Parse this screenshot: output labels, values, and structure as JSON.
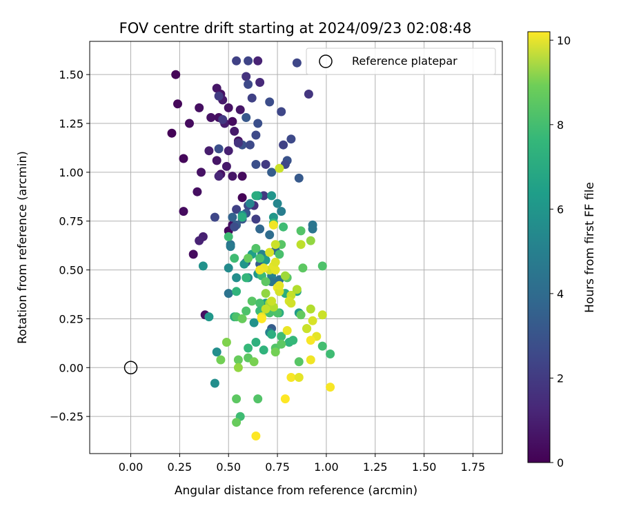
{
  "chart_data": {
    "type": "scatter",
    "title": "FOV centre drift starting at 2024/09/23 02:08:48",
    "xlabel": "Angular distance from reference (arcmin)",
    "ylabel": "Rotation from reference (arcmin)",
    "xlim": [
      -0.21,
      1.9
    ],
    "ylim": [
      -0.44,
      1.67
    ],
    "xticks": [
      0.0,
      0.25,
      0.5,
      0.75,
      1.0,
      1.25,
      1.5,
      1.75
    ],
    "xtick_labels": [
      "0.00",
      "0.25",
      "0.50",
      "0.75",
      "1.00",
      "1.25",
      "1.50",
      "1.75"
    ],
    "yticks": [
      -0.25,
      0.0,
      0.25,
      0.5,
      0.75,
      1.0,
      1.25,
      1.5
    ],
    "ytick_labels": [
      "−0.25",
      "0.00",
      "0.25",
      "0.50",
      "0.75",
      "1.00",
      "1.25",
      "1.50"
    ],
    "grid": true,
    "colormap": "viridis",
    "colorbar": {
      "label": "Hours from first FF file",
      "range": [
        0,
        10.2
      ],
      "ticks": [
        0,
        2,
        4,
        6,
        8,
        10
      ],
      "tick_labels": [
        "0",
        "2",
        "4",
        "6",
        "8",
        "10"
      ]
    },
    "legend": {
      "position": "top-right",
      "entries": [
        "Reference platepar"
      ]
    },
    "reference_point": {
      "x": 0.0,
      "y": 0.0
    },
    "points": [
      [
        0.23,
        1.5,
        0.1
      ],
      [
        0.24,
        1.35,
        0.2
      ],
      [
        0.21,
        1.2,
        0.1
      ],
      [
        0.3,
        1.25,
        0.3
      ],
      [
        0.35,
        1.33,
        0.4
      ],
      [
        0.41,
        1.28,
        0.5
      ],
      [
        0.44,
        1.43,
        0.6
      ],
      [
        0.46,
        1.4,
        0.5
      ],
      [
        0.47,
        1.37,
        0.7
      ],
      [
        0.45,
        1.28,
        0.4
      ],
      [
        0.48,
        1.25,
        0.8
      ],
      [
        0.5,
        1.33,
        0.5
      ],
      [
        0.52,
        1.26,
        0.3
      ],
      [
        0.53,
        1.21,
        0.7
      ],
      [
        0.56,
        1.32,
        0.6
      ],
      [
        0.27,
        1.07,
        0.2
      ],
      [
        0.36,
        1.0,
        0.5
      ],
      [
        0.4,
        1.11,
        0.8
      ],
      [
        0.44,
        1.06,
        0.6
      ],
      [
        0.46,
        0.99,
        0.5
      ],
      [
        0.49,
        1.03,
        0.7
      ],
      [
        0.5,
        1.11,
        0.9
      ],
      [
        0.52,
        0.98,
        0.6
      ],
      [
        0.55,
        1.16,
        0.4
      ],
      [
        0.57,
        0.98,
        0.3
      ],
      [
        0.34,
        0.9,
        0.4
      ],
      [
        0.27,
        0.8,
        0.3
      ],
      [
        0.5,
        0.7,
        0.2
      ],
      [
        0.57,
        0.87,
        0.1
      ],
      [
        0.52,
        0.73,
        0.4
      ],
      [
        0.37,
        0.67,
        0.9
      ],
      [
        0.35,
        0.65,
        1.0
      ],
      [
        0.32,
        0.58,
        0.3
      ],
      [
        0.38,
        0.27,
        0.4
      ],
      [
        0.45,
        0.98,
        1.1
      ],
      [
        0.54,
        1.57,
        2.0
      ],
      [
        0.6,
        1.57,
        2.1
      ],
      [
        0.65,
        1.57,
        1.0
      ],
      [
        0.85,
        1.56,
        2.2
      ],
      [
        0.59,
        1.49,
        1.5
      ],
      [
        0.66,
        1.46,
        1.2
      ],
      [
        0.6,
        1.45,
        2.3
      ],
      [
        0.91,
        1.4,
        1.6
      ],
      [
        0.45,
        1.39,
        1.8
      ],
      [
        0.62,
        1.38,
        2.0
      ],
      [
        0.71,
        1.36,
        2.4
      ],
      [
        0.77,
        1.31,
        2.2
      ],
      [
        0.47,
        1.27,
        1.7
      ],
      [
        0.59,
        1.28,
        2.8
      ],
      [
        0.65,
        1.25,
        2.5
      ],
      [
        0.64,
        1.19,
        2.3
      ],
      [
        0.57,
        1.14,
        2.6
      ],
      [
        0.55,
        1.15,
        1.5
      ],
      [
        0.61,
        1.14,
        2.3
      ],
      [
        0.45,
        1.12,
        2.5
      ],
      [
        0.78,
        1.14,
        2.0
      ],
      [
        0.82,
        1.17,
        2.3
      ],
      [
        0.69,
        1.04,
        1.8
      ],
      [
        0.64,
        1.04,
        2.5
      ],
      [
        0.72,
        1.0,
        3.0
      ],
      [
        0.8,
        1.06,
        2.6
      ],
      [
        0.79,
        1.04,
        2.2
      ],
      [
        0.86,
        0.97,
        2.9
      ],
      [
        0.68,
        0.88,
        1.7
      ],
      [
        0.63,
        0.83,
        1.4
      ],
      [
        0.6,
        0.83,
        2.3
      ],
      [
        0.54,
        0.81,
        2.0
      ],
      [
        0.59,
        0.79,
        2.7
      ],
      [
        0.43,
        0.77,
        2.2
      ],
      [
        0.52,
        0.77,
        3.2
      ],
      [
        0.57,
        0.76,
        2.7
      ],
      [
        0.64,
        0.76,
        1.9
      ],
      [
        0.66,
        0.71,
        3.4
      ],
      [
        0.54,
        0.73,
        3.0
      ],
      [
        0.53,
        0.72,
        2.4
      ],
      [
        0.93,
        0.71,
        4.0
      ],
      [
        0.71,
        0.68,
        3.6
      ],
      [
        0.51,
        0.63,
        3.8
      ],
      [
        0.74,
        0.6,
        3.5
      ],
      [
        0.51,
        0.62,
        4.2
      ],
      [
        0.66,
        0.53,
        3.0
      ],
      [
        0.59,
        0.54,
        2.5
      ],
      [
        0.72,
        0.47,
        4.5
      ],
      [
        0.72,
        0.44,
        4.0
      ],
      [
        0.76,
        0.45,
        3.8
      ],
      [
        0.5,
        0.38,
        3.9
      ],
      [
        0.72,
        0.2,
        3.0
      ],
      [
        0.71,
        0.18,
        4.5
      ],
      [
        0.44,
        0.08,
        5.0
      ],
      [
        0.43,
        -0.08,
        5.0
      ],
      [
        0.65,
        0.88,
        5.4
      ],
      [
        0.72,
        0.88,
        5.3
      ],
      [
        0.75,
        0.84,
        4.7
      ],
      [
        0.77,
        0.8,
        4.3
      ],
      [
        0.61,
        0.84,
        4.6
      ],
      [
        0.57,
        0.78,
        5.2
      ],
      [
        0.73,
        0.77,
        5.4
      ],
      [
        0.67,
        0.58,
        4.6
      ],
      [
        0.58,
        0.53,
        5.3
      ],
      [
        0.62,
        0.58,
        5.7
      ],
      [
        0.5,
        0.51,
        4.9
      ],
      [
        0.37,
        0.52,
        5.2
      ],
      [
        0.54,
        0.46,
        5.0
      ],
      [
        0.6,
        0.46,
        4.9
      ],
      [
        0.65,
        0.48,
        5.4
      ],
      [
        0.69,
        0.55,
        5.5
      ],
      [
        0.4,
        0.26,
        5.4
      ],
      [
        0.63,
        0.23,
        5.2
      ],
      [
        0.67,
        0.28,
        5.6
      ],
      [
        0.76,
        0.28,
        6.3
      ],
      [
        0.86,
        0.28,
        5.5
      ],
      [
        0.85,
        0.39,
        6.0
      ],
      [
        0.79,
        0.38,
        6.3
      ],
      [
        0.69,
        0.33,
        5.7
      ],
      [
        0.7,
        0.31,
        5.4
      ],
      [
        0.57,
        0.77,
        6.3
      ],
      [
        0.64,
        0.88,
        6.3
      ],
      [
        0.73,
        0.74,
        6.8
      ],
      [
        0.78,
        0.72,
        7.0
      ],
      [
        0.87,
        0.7,
        7.4
      ],
      [
        0.93,
        0.73,
        4.0
      ],
      [
        0.77,
        0.63,
        7.5
      ],
      [
        0.76,
        0.58,
        7.2
      ],
      [
        0.64,
        0.61,
        7.4
      ],
      [
        0.5,
        0.67,
        7.0
      ],
      [
        0.66,
        0.56,
        7.2
      ],
      [
        0.53,
        0.56,
        7.0
      ],
      [
        0.6,
        0.56,
        7.8
      ],
      [
        0.88,
        0.51,
        7.6
      ],
      [
        0.98,
        0.52,
        7.3
      ],
      [
        0.59,
        0.46,
        6.7
      ],
      [
        0.54,
        0.39,
        6.6
      ],
      [
        0.67,
        0.47,
        6.9
      ],
      [
        0.8,
        0.46,
        7.5
      ],
      [
        0.69,
        0.44,
        7.6
      ],
      [
        0.76,
        0.39,
        6.9
      ],
      [
        0.62,
        0.34,
        7.5
      ],
      [
        0.66,
        0.33,
        7.2
      ],
      [
        0.66,
        0.29,
        6.9
      ],
      [
        0.59,
        0.29,
        7.3
      ],
      [
        0.53,
        0.26,
        6.3
      ],
      [
        0.54,
        0.26,
        7.3
      ],
      [
        0.57,
        0.25,
        7.8
      ],
      [
        0.71,
        0.28,
        7.2
      ],
      [
        0.75,
        0.28,
        7.3
      ],
      [
        0.87,
        0.27,
        7.7
      ],
      [
        0.9,
        0.2,
        8.3
      ],
      [
        0.72,
        0.17,
        6.4
      ],
      [
        0.77,
        0.16,
        7.0
      ],
      [
        0.81,
        0.13,
        6.6
      ],
      [
        0.83,
        0.14,
        6.8
      ],
      [
        0.98,
        0.11,
        7.1
      ],
      [
        0.74,
        0.1,
        7.4
      ],
      [
        0.77,
        0.12,
        7.6
      ],
      [
        1.02,
        0.07,
        7.0
      ],
      [
        0.49,
        0.13,
        8.2
      ],
      [
        0.46,
        0.04,
        8.0
      ],
      [
        0.55,
        0.04,
        7.8
      ],
      [
        0.6,
        0.05,
        7.6
      ],
      [
        0.63,
        0.03,
        8.1
      ],
      [
        0.68,
        0.09,
        6.6
      ],
      [
        0.74,
        0.08,
        8.0
      ],
      [
        0.6,
        0.1,
        6.8
      ],
      [
        0.64,
        0.13,
        6.5
      ],
      [
        0.86,
        0.03,
        7.5
      ],
      [
        0.55,
        0.0,
        8.5
      ],
      [
        0.54,
        -0.16,
        7.6
      ],
      [
        0.65,
        -0.16,
        7.4
      ],
      [
        0.56,
        -0.25,
        7.0
      ],
      [
        0.54,
        -0.28,
        7.8
      ],
      [
        0.71,
        0.33,
        8.8
      ],
      [
        0.73,
        0.31,
        9.0
      ],
      [
        0.72,
        0.34,
        9.4
      ],
      [
        0.69,
        0.38,
        8.5
      ],
      [
        0.69,
        0.3,
        9.3
      ],
      [
        0.71,
        0.5,
        9.5
      ],
      [
        0.73,
        0.52,
        9.8
      ],
      [
        0.68,
        0.51,
        9.9
      ],
      [
        0.66,
        0.5,
        10.0
      ],
      [
        0.75,
        0.41,
        10.0
      ],
      [
        0.76,
        0.39,
        9.6
      ],
      [
        0.82,
        0.37,
        9.3
      ],
      [
        0.74,
        0.5,
        9.8
      ],
      [
        0.74,
        0.63,
        9.4
      ],
      [
        0.73,
        0.73,
        10.0
      ],
      [
        0.71,
        0.59,
        9.6
      ],
      [
        0.74,
        0.54,
        9.7
      ],
      [
        0.87,
        0.63,
        9.2
      ],
      [
        0.92,
        0.65,
        8.5
      ],
      [
        0.79,
        0.47,
        8.7
      ],
      [
        0.76,
        0.42,
        9.8
      ],
      [
        0.81,
        0.34,
        9.6
      ],
      [
        0.85,
        0.4,
        9.0
      ],
      [
        0.82,
        0.33,
        9.5
      ],
      [
        0.67,
        0.26,
        9.9
      ],
      [
        0.92,
        0.3,
        9.0
      ],
      [
        0.93,
        0.24,
        9.6
      ],
      [
        0.98,
        0.27,
        9.4
      ],
      [
        0.95,
        0.16,
        9.8
      ],
      [
        0.92,
        0.14,
        10.1
      ],
      [
        0.8,
        0.19,
        9.9
      ],
      [
        0.92,
        0.04,
        10.0
      ],
      [
        0.82,
        -0.05,
        10.1
      ],
      [
        0.86,
        -0.05,
        9.8
      ],
      [
        0.79,
        -0.16,
        10.2
      ],
      [
        1.02,
        -0.1,
        10.1
      ],
      [
        0.64,
        -0.35,
        10.2
      ],
      [
        0.76,
        1.02,
        9.4
      ],
      [
        0.67,
        0.25,
        10.2
      ],
      [
        0.9,
        0.2,
        9.4
      ]
    ]
  }
}
